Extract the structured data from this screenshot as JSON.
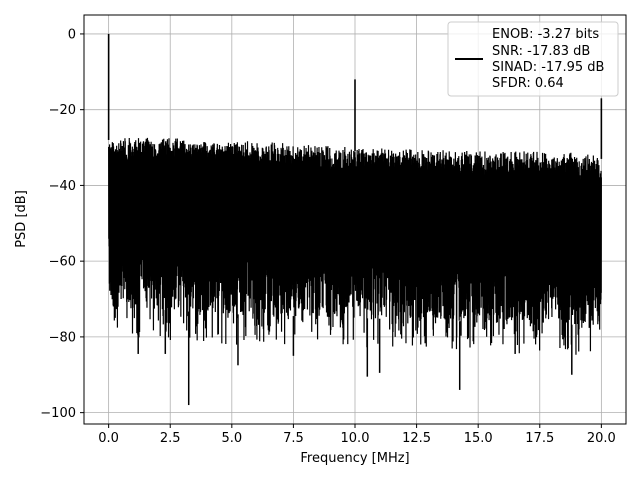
{
  "chart_data": {
    "type": "line",
    "title": "",
    "xlabel": "Frequency [MHz]",
    "ylabel": "PSD [dB]",
    "xlim": [
      -1.0,
      21.0
    ],
    "ylim": [
      -103.0,
      5.0
    ],
    "xticks": [
      0.0,
      2.5,
      5.0,
      7.5,
      10.0,
      12.5,
      15.0,
      17.5,
      20.0
    ],
    "xtick_labels": [
      "0.0",
      "2.5",
      "5.0",
      "7.5",
      "10.0",
      "12.5",
      "15.0",
      "17.5",
      "20.0"
    ],
    "yticks": [
      0,
      -20,
      -40,
      -60,
      -80,
      -100
    ],
    "ytick_labels": [
      "0",
      "−20",
      "−40",
      "−60",
      "−80",
      "−100"
    ],
    "grid": true,
    "legend_position": "top-right",
    "series": [
      {
        "name": "ENOB: -3.27 bits\nSNR: -17.83 dB\nSINAD: -17.95 dB\nSFDR: 0.64",
        "legend_lines": [
          "ENOB: -3.27 bits",
          "SNR: -17.83 dB",
          "SINAD: -17.95 dB",
          "SFDR: 0.64"
        ],
        "color": "#000000",
        "noise_band": {
          "x": [
            0.0,
            5.0,
            10.0,
            15.0,
            20.0
          ],
          "upper": [
            -28,
            -29,
            -31,
            -32,
            -33
          ],
          "lower": [
            -72,
            -74,
            -75,
            -76,
            -77
          ],
          "extreme_upper": [
            -27,
            -28,
            -30,
            -31,
            -31
          ],
          "extreme_lower": [
            -80,
            -82,
            -83,
            -84,
            -85
          ]
        },
        "peaks": [
          {
            "x": 0.0,
            "y": 0.0
          },
          {
            "x": 10.0,
            "y": -12.0
          },
          {
            "x": 20.0,
            "y": -17.0
          }
        ],
        "dips": [
          {
            "x": 1.2,
            "y": -84.5
          },
          {
            "x": 2.3,
            "y": -84.5
          },
          {
            "x": 3.25,
            "y": -98.0
          },
          {
            "x": 5.25,
            "y": -87.5
          },
          {
            "x": 7.5,
            "y": -85.0
          },
          {
            "x": 10.5,
            "y": -90.5
          },
          {
            "x": 11.0,
            "y": -89.5
          },
          {
            "x": 14.25,
            "y": -94.0
          },
          {
            "x": 16.5,
            "y": -84.5
          },
          {
            "x": 18.8,
            "y": -90.0
          }
        ]
      }
    ]
  }
}
